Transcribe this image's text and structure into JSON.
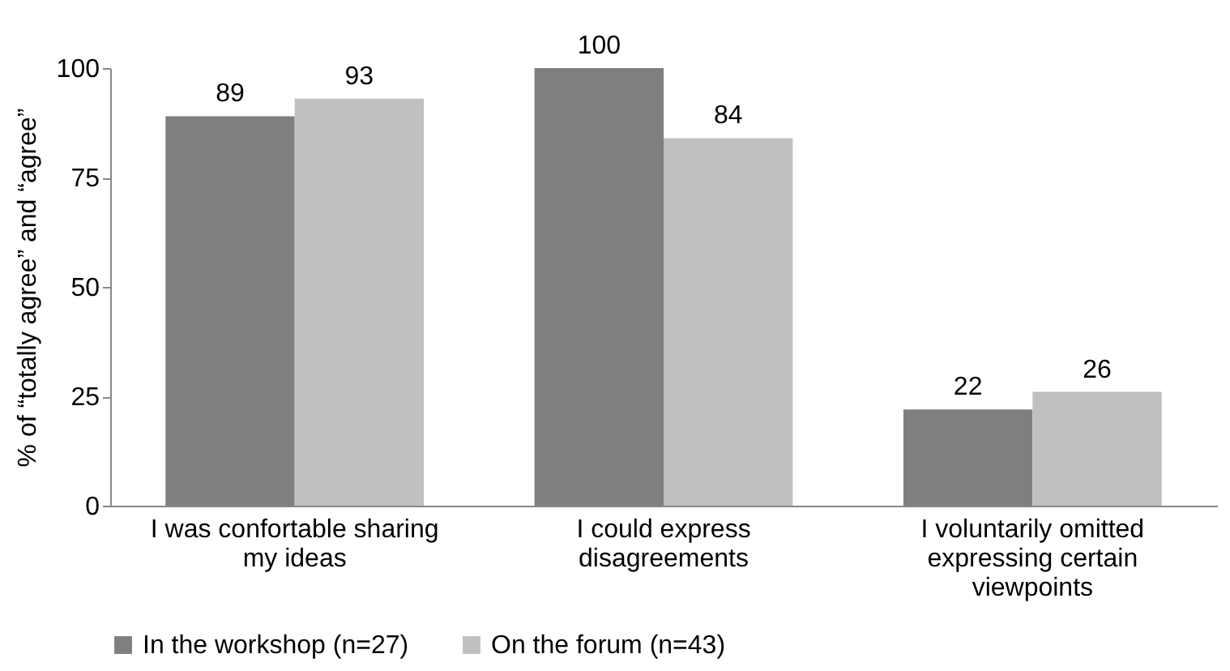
{
  "chart_data": {
    "type": "bar",
    "ylabel": "% of “totally agree” and “agree”",
    "categories": [
      "I was confortable sharing my ideas",
      "I could express disagreements",
      "I voluntarily omitted expressing certain viewpoints"
    ],
    "series": [
      {
        "name": "In the workshop (n=27)",
        "color": "#7f7f7f",
        "values": [
          89,
          100,
          22
        ]
      },
      {
        "name": "On the forum (n=43)",
        "color": "#c0c0c0",
        "values": [
          93,
          84,
          26
        ]
      }
    ],
    "ylim": [
      0,
      100
    ],
    "yticks": [
      0,
      25,
      50,
      75,
      100
    ],
    "data_labels": true,
    "legend": "bottom",
    "grid": false
  }
}
